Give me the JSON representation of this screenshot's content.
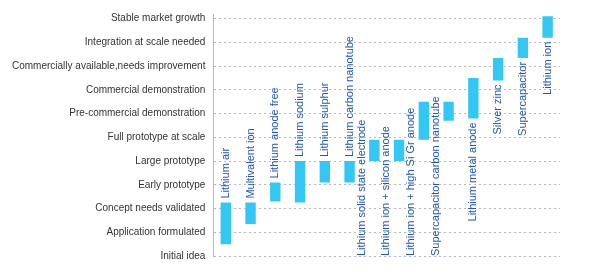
{
  "chart_data": {
    "type": "bar",
    "categories": [
      "Lithium air",
      "Multivalent ion",
      "Lithium anode free",
      "Lithium sodium",
      "Lithium sulphur",
      "Lithium carbon nanotube",
      "Lithium solid state electrode",
      "Lithium ion + silicon anode",
      "Lithium ion + high Si Gr anode",
      "Supercapacitor carbon nanotube",
      "Lithium metal anode",
      "Silver zinc",
      "Supercapacitor",
      "Lithium ion"
    ],
    "values": [
      [
        0.5,
        2.25
      ],
      [
        1.35,
        2.25
      ],
      [
        2.3,
        3.1
      ],
      [
        2.25,
        4.0
      ],
      [
        3.1,
        4.0
      ],
      [
        3.1,
        4.0
      ],
      [
        4.0,
        4.9
      ],
      [
        4.0,
        4.9
      ],
      [
        4.9,
        6.5
      ],
      [
        5.7,
        6.5
      ],
      [
        5.8,
        7.5
      ],
      [
        7.4,
        8.35
      ],
      [
        8.35,
        9.2
      ],
      [
        9.2,
        10.1
      ]
    ],
    "color": "#33c8f4",
    "ylim": [
      0,
      10.2
    ],
    "yticks": [
      {
        "value": 0,
        "label": "Initial idea"
      },
      {
        "value": 1,
        "label": "Application formulated"
      },
      {
        "value": 2,
        "label": "Concept needs validated"
      },
      {
        "value": 3,
        "label": "Early prototype"
      },
      {
        "value": 4,
        "label": "Large prototype"
      },
      {
        "value": 5,
        "label": "Full prototype at scale"
      },
      {
        "value": 6,
        "label": "Pre-commercial demonstration"
      },
      {
        "value": 7,
        "label": "Commercial demonstration"
      },
      {
        "value": 8,
        "label": "Commercially available,needs improvement"
      },
      {
        "value": 9,
        "label": "Integration at scale needed"
      },
      {
        "value": 10,
        "label": "Stable market growth"
      }
    ],
    "grid": true,
    "tick_labels": "y"
  }
}
